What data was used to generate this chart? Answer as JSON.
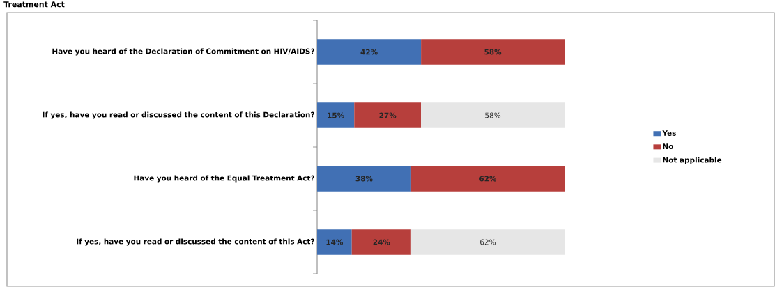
{
  "chart_data": {
    "type": "bar",
    "title": "Treatment Act",
    "orientation": "horizontal",
    "stacked": true,
    "legend": "right",
    "categories": [
      "Have you heard of the Declaration of Commitment on HIV/AIDS?",
      "If yes, have you read or discussed the content of this Declaration?",
      "Have you heard of the Equal Treatment Act?",
      "If yes, have you read or discussed the content of this Act?"
    ],
    "series": [
      {
        "name": "Yes",
        "color": "#4170b4",
        "values": [
          42,
          15,
          38,
          14
        ],
        "value_labels": [
          "42%",
          "15%",
          "38%",
          "14%"
        ]
      },
      {
        "name": "No",
        "color": "#b73f3c",
        "values": [
          58,
          27,
          62,
          24
        ],
        "value_labels": [
          "58%",
          "27%",
          "62%",
          "24%"
        ]
      },
      {
        "name": "Not applicable",
        "color": "#e6e6e6",
        "values": [
          null,
          58,
          null,
          62
        ],
        "value_labels": [
          null,
          "58%",
          null,
          "62%"
        ]
      }
    ]
  }
}
